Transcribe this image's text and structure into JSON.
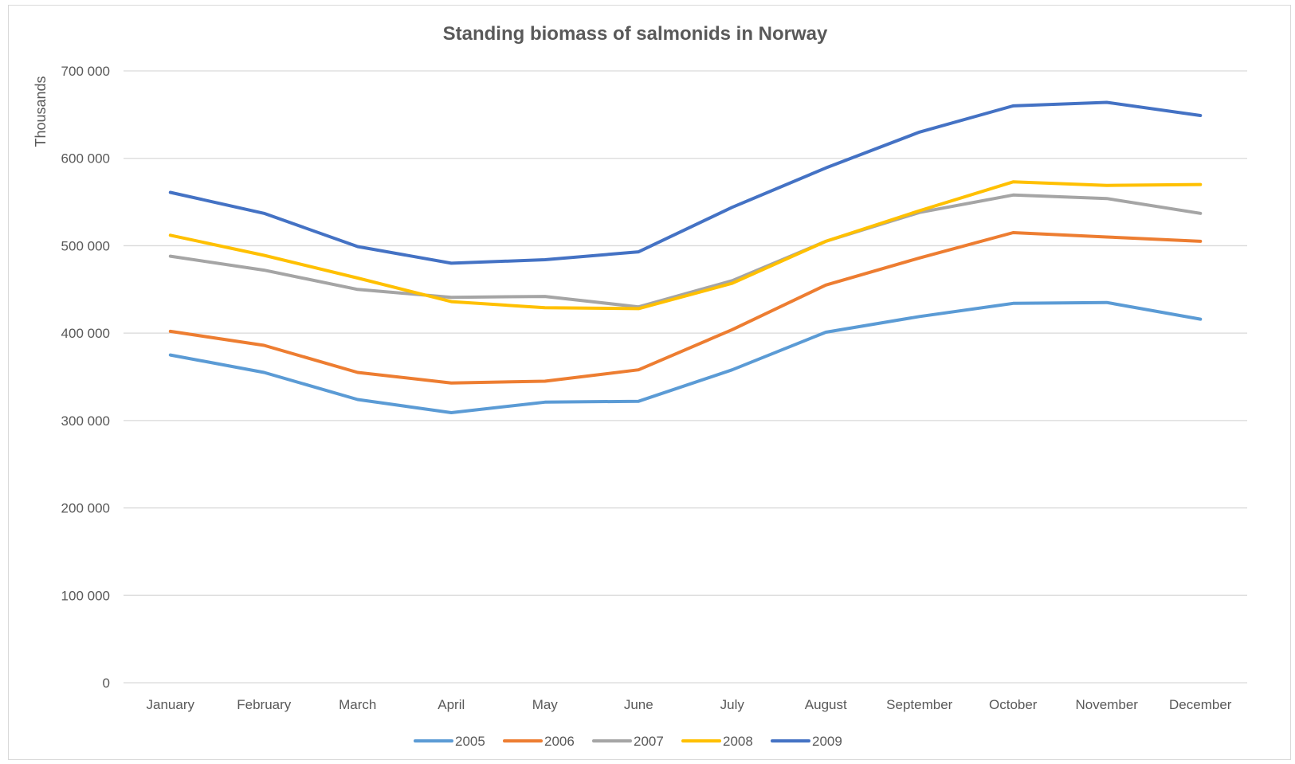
{
  "chart_data": {
    "type": "line",
    "title": "Standing biomass of salmonids in Norway",
    "xlabel": "",
    "ylabel": "Thousands",
    "ylim": [
      0,
      700000
    ],
    "y_ticks": [
      0,
      100000,
      200000,
      300000,
      400000,
      500000,
      600000,
      700000
    ],
    "y_tick_labels": [
      "0",
      "100 000",
      "200 000",
      "300 000",
      "400 000",
      "500 000",
      "600 000",
      "700 000"
    ],
    "grid": "horizontal",
    "legend_position": "bottom",
    "categories": [
      "January",
      "February",
      "March",
      "April",
      "May",
      "June",
      "July",
      "August",
      "September",
      "October",
      "November",
      "December"
    ],
    "series": [
      {
        "name": "2005",
        "color": "#5B9BD5",
        "values": [
          375000,
          355000,
          324000,
          309000,
          321000,
          322000,
          358000,
          401000,
          419000,
          434000,
          435000,
          416000
        ]
      },
      {
        "name": "2006",
        "color": "#ED7D31",
        "values": [
          402000,
          386000,
          355000,
          343000,
          345000,
          358000,
          404000,
          455000,
          486000,
          515000,
          510000,
          505000
        ]
      },
      {
        "name": "2007",
        "color": "#A5A5A5",
        "values": [
          488000,
          472000,
          450000,
          441000,
          442000,
          430000,
          460000,
          505000,
          538000,
          558000,
          554000,
          537000
        ]
      },
      {
        "name": "2008",
        "color": "#FFC000",
        "values": [
          512000,
          489000,
          463000,
          436000,
          429000,
          428000,
          457000,
          505000,
          540000,
          573000,
          569000,
          570000
        ]
      },
      {
        "name": "2009",
        "color": "#4472C4",
        "values": [
          561000,
          537000,
          499000,
          480000,
          484000,
          493000,
          544000,
          589000,
          630000,
          660000,
          664000,
          649000
        ]
      }
    ]
  }
}
